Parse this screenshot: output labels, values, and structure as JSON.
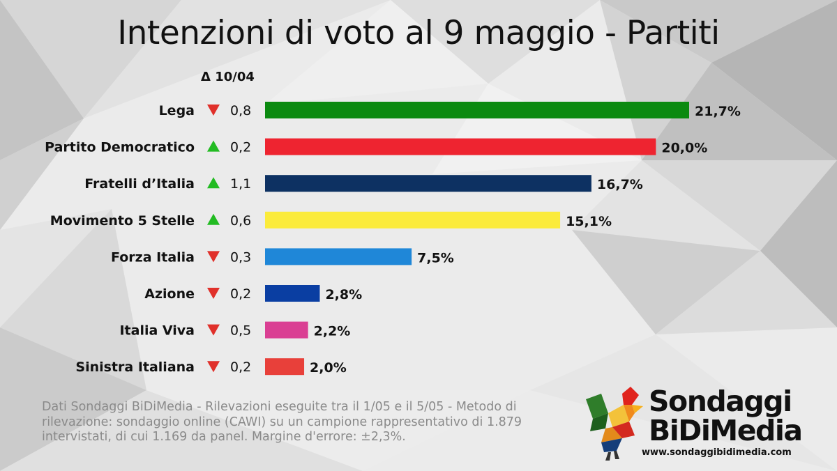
{
  "title": "Intenzioni di voto al 9 maggio - Partiti",
  "delta_header": "Δ 10/04",
  "chart_data": {
    "type": "bar",
    "orientation": "horizontal",
    "categories": [
      "Lega",
      "Partito Democratico",
      "Fratelli d’Italia",
      "Movimento 5 Stelle",
      "Forza Italia",
      "Azione",
      "Italia Viva",
      "Sinistra Italiana"
    ],
    "values": [
      21.7,
      20.0,
      16.7,
      15.1,
      7.5,
      2.8,
      2.2,
      2.0
    ],
    "value_labels": [
      "21,7%",
      "20,0%",
      "16,7%",
      "15,1%",
      "7,5%",
      "2,8%",
      "2,2%",
      "2,0%"
    ],
    "colors": [
      "#0b8a10",
      "#ee2430",
      "#0d3162",
      "#fbeb3b",
      "#1f87d8",
      "#0a3ea2",
      "#da3f93",
      "#e8403a"
    ],
    "delta": {
      "values": [
        "0,8",
        "0,2",
        "1,1",
        "0,6",
        "0,3",
        "0,2",
        "0,5",
        "0,2"
      ],
      "direction": [
        "down",
        "up",
        "up",
        "up",
        "down",
        "down",
        "down",
        "down"
      ],
      "colors": {
        "up": "#22bb22",
        "down": "#e0302a"
      }
    },
    "xlim": [
      0,
      21.7
    ]
  },
  "footnote": "Dati Sondaggi BiDiMedia - Rilevazioni eseguite tra il 1/05 e il 5/05 - Metodo di rilevazione: sondaggio online (CAWI) su un campione rappresentativo di 1.879 intervistati, di cui 1.169 da panel. Margine d'errore: ±2,3%.",
  "logo": {
    "line1": "Sondaggi",
    "line2": "BiDiMedia",
    "url": "www.sondaggibidimedia.com"
  }
}
